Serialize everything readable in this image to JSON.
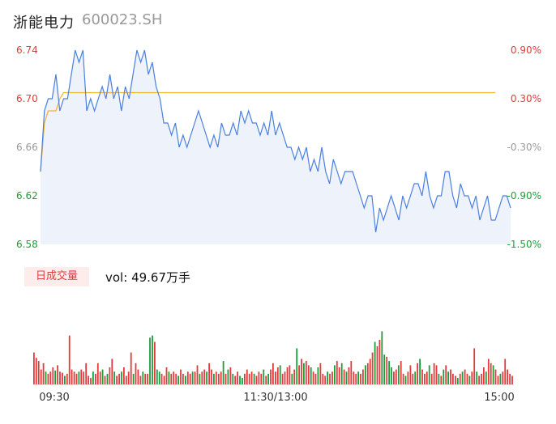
{
  "stock": {
    "name": "浙能电力",
    "code": "600023.SH"
  },
  "volume": {
    "badge_label": "日成交量",
    "prefix": "vol:",
    "value": "49.67万手"
  },
  "colors": {
    "up": "#e23b3b",
    "down": "#1a9e3a",
    "neutral": "#999999",
    "price_line": "#4a7fe0",
    "avg_line": "#f2b632",
    "area_fill": "#eef2fb"
  },
  "chart_data": [
    {
      "type": "line",
      "title": "",
      "y_left_ticks": [
        "6.74",
        "6.70",
        "6.66",
        "6.62",
        "6.58"
      ],
      "y_right_ticks": [
        "0.90%",
        "0.30%",
        "-0.30%",
        "-0.90%",
        "-1.50%"
      ],
      "tick_colors": [
        "up",
        "up",
        "neutral",
        "down",
        "down"
      ],
      "ylim": [
        6.58,
        6.74
      ],
      "x_ticks": [
        "09:30",
        "11:30/13:00",
        "15:00"
      ],
      "series": [
        {
          "role": "price",
          "values": [
            6.64,
            6.69,
            6.7,
            6.7,
            6.72,
            6.69,
            6.7,
            6.7,
            6.72,
            6.74,
            6.73,
            6.74,
            6.69,
            6.7,
            6.69,
            6.7,
            6.71,
            6.7,
            6.72,
            6.7,
            6.71,
            6.69,
            6.71,
            6.7,
            6.72,
            6.74,
            6.73,
            6.74,
            6.72,
            6.73,
            6.71,
            6.7,
            6.68,
            6.68,
            6.67,
            6.68,
            6.66,
            6.67,
            6.66,
            6.67,
            6.68,
            6.69,
            6.68,
            6.67,
            6.66,
            6.67,
            6.66,
            6.68,
            6.67,
            6.67,
            6.68,
            6.67,
            6.69,
            6.68,
            6.69,
            6.68,
            6.68,
            6.67,
            6.68,
            6.67,
            6.69,
            6.67,
            6.68,
            6.67,
            6.66,
            6.66,
            6.65,
            6.66,
            6.65,
            6.66,
            6.64,
            6.65,
            6.64,
            6.66,
            6.64,
            6.63,
            6.65,
            6.64,
            6.63,
            6.64,
            6.64,
            6.64,
            6.63,
            6.62,
            6.61,
            6.62,
            6.62,
            6.59,
            6.61,
            6.6,
            6.61,
            6.62,
            6.61,
            6.6,
            6.62,
            6.61,
            6.62,
            6.63,
            6.63,
            6.62,
            6.64,
            6.62,
            6.61,
            6.62,
            6.62,
            6.64,
            6.64,
            6.62,
            6.61,
            6.63,
            6.62,
            6.62,
            6.61,
            6.62,
            6.6,
            6.61,
            6.62,
            6.6,
            6.6,
            6.61,
            6.62,
            6.62,
            6.61
          ]
        },
        {
          "role": "average",
          "values": [
            6.64,
            6.68,
            6.69,
            6.69,
            6.69,
            6.7,
            6.705,
            6.705,
            6.705,
            6.705,
            6.705,
            6.705,
            6.705,
            6.705,
            6.705,
            6.705,
            6.705,
            6.705,
            6.705,
            6.705,
            6.705,
            6.705,
            6.705,
            6.705,
            6.705,
            6.705,
            6.705,
            6.705,
            6.705,
            6.705,
            6.705,
            6.705,
            6.705,
            6.705,
            6.705,
            6.705,
            6.705,
            6.705,
            6.705,
            6.705,
            6.705,
            6.705,
            6.705,
            6.705,
            6.705,
            6.705,
            6.705,
            6.705,
            6.705,
            6.705,
            6.705,
            6.705,
            6.705,
            6.705,
            6.705,
            6.705,
            6.705,
            6.705,
            6.705,
            6.705,
            6.705,
            6.705,
            6.705,
            6.705,
            6.705,
            6.705,
            6.705,
            6.705,
            6.705,
            6.705,
            6.705,
            6.705,
            6.705,
            6.705,
            6.705,
            6.705,
            6.705,
            6.705,
            6.705,
            6.705,
            6.705,
            6.705,
            6.705,
            6.705,
            6.705,
            6.705,
            6.705,
            6.705,
            6.705,
            6.705,
            6.705,
            6.705,
            6.705,
            6.705,
            6.705,
            6.705,
            6.705,
            6.705,
            6.705,
            6.705,
            6.705,
            6.705,
            6.705,
            6.705,
            6.705,
            6.705,
            6.705,
            6.705,
            6.705,
            6.705,
            6.705,
            6.705,
            6.705,
            6.705,
            6.705,
            6.705,
            6.705,
            6.705,
            6.705
          ]
        }
      ]
    },
    {
      "type": "bar",
      "title": "",
      "ylim": [
        0,
        80
      ],
      "values": [
        30,
        25,
        22,
        14,
        20,
        12,
        10,
        12,
        16,
        13,
        18,
        12,
        11,
        8,
        10,
        46,
        14,
        12,
        10,
        12,
        14,
        12,
        20,
        8,
        6,
        12,
        10,
        20,
        12,
        14,
        8,
        10,
        16,
        24,
        12,
        8,
        10,
        12,
        16,
        8,
        12,
        30,
        10,
        20,
        14,
        8,
        12,
        10,
        10,
        44,
        46,
        40,
        14,
        12,
        10,
        8,
        16,
        12,
        10,
        12,
        10,
        8,
        14,
        10,
        8,
        12,
        10,
        12,
        12,
        18,
        10,
        12,
        14,
        12,
        20,
        14,
        10,
        12,
        10,
        12,
        22,
        10,
        14,
        16,
        10,
        8,
        12,
        8,
        6,
        10,
        14,
        10,
        12,
        10,
        8,
        12,
        10,
        14,
        8,
        10,
        14,
        20,
        12,
        16,
        18,
        10,
        12,
        16,
        18,
        10,
        14,
        34,
        18,
        24,
        20,
        22,
        18,
        16,
        12,
        10,
        16,
        20,
        10,
        8,
        12,
        10,
        12,
        18,
        22,
        16,
        20,
        14,
        12,
        16,
        22,
        12,
        10,
        12,
        10,
        14,
        18,
        20,
        24,
        30,
        40,
        36,
        42,
        50,
        28,
        26,
        22,
        16,
        12,
        14,
        18,
        22,
        10,
        8,
        12,
        18,
        10,
        12,
        20,
        24,
        14,
        10,
        12,
        18,
        10,
        20,
        18,
        10,
        8,
        14,
        18,
        12,
        14,
        10,
        8,
        6,
        10,
        12,
        14,
        10,
        8,
        12,
        34,
        12,
        8,
        10,
        16,
        12,
        24,
        20,
        18,
        14,
        8,
        10,
        12,
        24,
        14,
        10,
        8
      ],
      "directions": "urrrudrurdruudrruurdurrurdrrudrdurdrrdruurdrrudrrdduddrurdruudrrdrudrrdurdrrdurrdrdudrrddrrurdrurdrdurrudrrurdudrrdurdrrdurudrrdurdrdrurrdurdrrudrrdduddrrdurdrrudrdurudrrudrdrdrrudrdurdrrdrurdrudrrdur"
    }
  ]
}
